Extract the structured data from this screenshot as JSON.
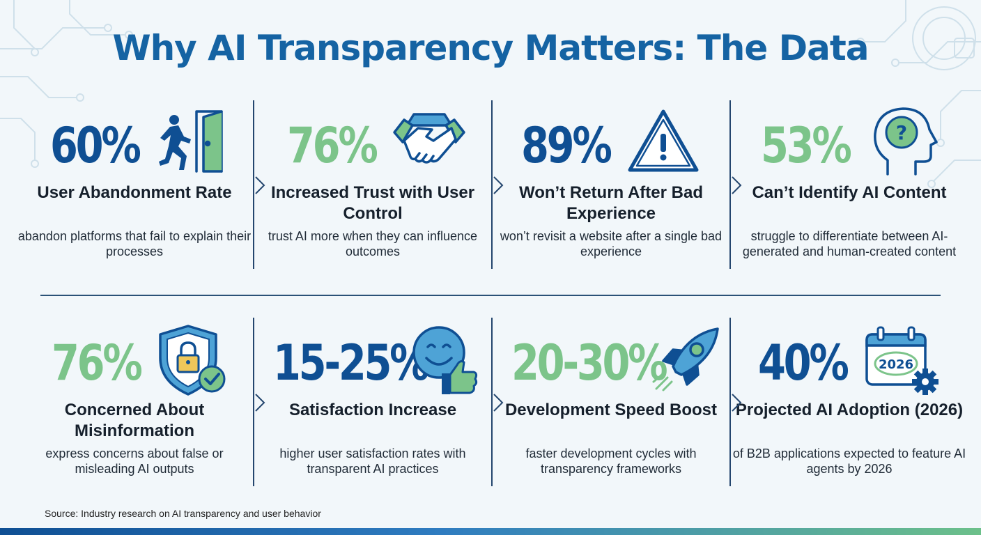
{
  "title": "Why AI Transparency Matters: The Data",
  "colors": {
    "navy": "#0f4f93",
    "green": "#7cc48a",
    "title": "#1563a3"
  },
  "cards": [
    {
      "stat": "60%",
      "label": "User Abandonment Rate",
      "desc": "abandon platforms that fail to explain their processes",
      "icon": "exit-door-icon",
      "color": "navy"
    },
    {
      "stat": "76%",
      "label": "Increased Trust with User Control",
      "desc": "trust AI more when they can influence outcomes",
      "icon": "handshake-icon",
      "color": "green"
    },
    {
      "stat": "89%",
      "label": "Won’t Return After Bad Experience",
      "desc": "won’t revisit a website after a single bad experience",
      "icon": "warning-icon",
      "color": "navy"
    },
    {
      "stat": "53%",
      "label": "Can’t Identify AI Content",
      "desc": "struggle to differentiate between AI-generated and human-created content",
      "icon": "head-question-icon",
      "color": "green"
    },
    {
      "stat": "76%",
      "label": "Concerned About Misinformation",
      "desc": "express concerns about false or misleading AI outputs",
      "icon": "shield-lock-icon",
      "color": "green"
    },
    {
      "stat": "15-25%",
      "label": "Satisfaction Increase",
      "desc": "higher user satisfaction rates with transparent AI practices",
      "icon": "smiley-thumbs-up-icon",
      "color": "navy"
    },
    {
      "stat": "20-30%",
      "label": "Development Speed Boost",
      "desc": "faster development cycles with transparency frameworks",
      "icon": "rocket-icon",
      "color": "green"
    },
    {
      "stat": "40%",
      "label": "Projected AI Adoption (2026)",
      "desc": "of B2B applications expected to feature AI agents by 2026",
      "icon": "calendar-gear-icon",
      "color": "navy",
      "icon_text": "2026"
    }
  ],
  "source": "Source: Industry research on AI transparency and user behavior"
}
